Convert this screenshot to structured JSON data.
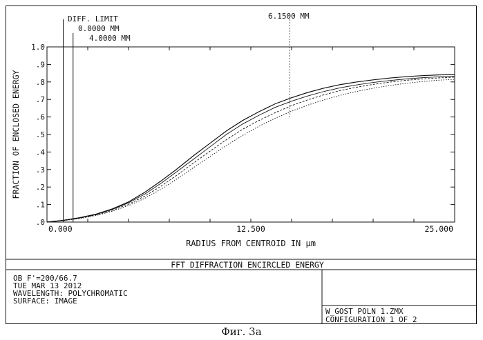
{
  "chart_data": {
    "type": "line",
    "xlabel": "RADIUS FROM CENTROID IN µm",
    "ylabel": "FRACTION OF ENCLOSED ENERGY",
    "xlim": [
      0,
      25
    ],
    "ylim": [
      0,
      1
    ],
    "x_ticks": [
      "0.000",
      "12.500",
      "25.000"
    ],
    "y_ticks": [
      ".0",
      ".1",
      ".2",
      ".3",
      ".4",
      ".5",
      ".6",
      ".7",
      ".8",
      ".9",
      "1.0"
    ],
    "legend": [
      "DIFF. LIMIT",
      "0.0000 MM",
      "4.0000 MM"
    ],
    "annotation": "6.1500 MM",
    "annotation_x": 14.9,
    "series": [
      {
        "name": "DIFF. LIMIT",
        "style": "vertical",
        "x": 1.0
      },
      {
        "name": "0.0000 MM",
        "style": "vertical",
        "x": 1.6
      },
      {
        "x": [
          0,
          1,
          2,
          3,
          4,
          5,
          6,
          7,
          8,
          9,
          10,
          11,
          12,
          13,
          14,
          15,
          16,
          17,
          18,
          19,
          20,
          21,
          22,
          23,
          24,
          25
        ],
        "values": [
          0,
          0.01,
          0.025,
          0.045,
          0.075,
          0.115,
          0.17,
          0.235,
          0.305,
          0.38,
          0.45,
          0.52,
          0.58,
          0.63,
          0.675,
          0.71,
          0.74,
          0.765,
          0.785,
          0.8,
          0.812,
          0.822,
          0.83,
          0.836,
          0.84,
          0.842
        ]
      },
      {
        "x": [
          0,
          1,
          2,
          3,
          4,
          5,
          6,
          7,
          8,
          9,
          10,
          11,
          12,
          13,
          14,
          15,
          16,
          17,
          18,
          19,
          20,
          21,
          22,
          23,
          24,
          25
        ],
        "values": [
          0,
          0.01,
          0.024,
          0.043,
          0.072,
          0.11,
          0.16,
          0.222,
          0.29,
          0.36,
          0.43,
          0.5,
          0.56,
          0.61,
          0.655,
          0.69,
          0.72,
          0.746,
          0.767,
          0.783,
          0.797,
          0.808,
          0.817,
          0.824,
          0.829,
          0.832
        ]
      },
      {
        "x": [
          0,
          1,
          2,
          3,
          4,
          5,
          6,
          7,
          8,
          9,
          10,
          11,
          12,
          13,
          14,
          15,
          16,
          17,
          18,
          19,
          20,
          21,
          22,
          23,
          24,
          25
        ],
        "values": [
          0,
          0.009,
          0.022,
          0.04,
          0.067,
          0.102,
          0.148,
          0.205,
          0.27,
          0.338,
          0.405,
          0.47,
          0.53,
          0.58,
          0.625,
          0.665,
          0.698,
          0.727,
          0.751,
          0.77,
          0.786,
          0.799,
          0.809,
          0.817,
          0.823,
          0.827
        ]
      },
      {
        "x": [
          0,
          1,
          2,
          3,
          4,
          5,
          6,
          7,
          8,
          9,
          10,
          11,
          12,
          13,
          14,
          15,
          16,
          17,
          18,
          19,
          20,
          21,
          22,
          23,
          24,
          25
        ],
        "values": [
          0,
          0.008,
          0.02,
          0.037,
          0.062,
          0.094,
          0.136,
          0.188,
          0.248,
          0.312,
          0.375,
          0.437,
          0.495,
          0.547,
          0.593,
          0.633,
          0.668,
          0.698,
          0.724,
          0.746,
          0.764,
          0.779,
          0.792,
          0.802,
          0.81,
          0.815
        ]
      }
    ]
  },
  "title_bar": "FFT DIFFRACTION ENCIRCLED ENERGY",
  "info_lines": [
    "OB F'=200/66.7",
    "TUE MAR 13 2012",
    "WAVELENGTH: POLYCHROMATIC",
    "SURFACE: IMAGE"
  ],
  "file_lines": [
    "W_GOST POLN 1.ZMX",
    "CONFIGURATION 1 OF 2"
  ],
  "caption": "Фиг. 3а"
}
